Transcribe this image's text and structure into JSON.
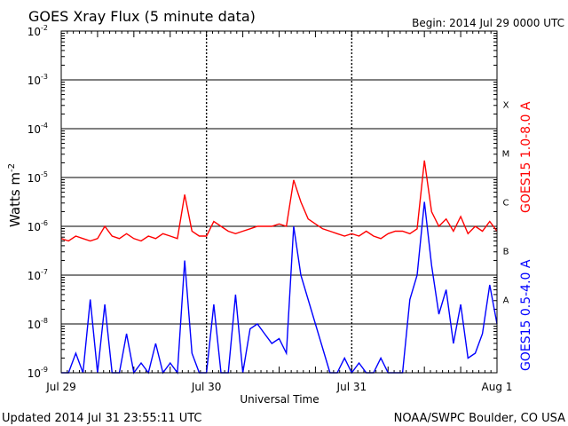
{
  "chart_data": {
    "type": "line",
    "title": "GOES Xray Flux (5 minute data)",
    "begin_label": "Begin:  2014 Jul 29 0000 UTC",
    "ylabel_base": "Watts m",
    "ylabel_exp": "-2",
    "xlabel": "Universal Time",
    "x_ticks": [
      "Jul 29",
      "Jul 30",
      "Jul 31",
      "Aug 1"
    ],
    "x_range_days": [
      0,
      3
    ],
    "y_scale": "log",
    "y_ticks": [
      {
        "base": "10",
        "exp": "-2"
      },
      {
        "base": "10",
        "exp": "-3"
      },
      {
        "base": "10",
        "exp": "-4"
      },
      {
        "base": "10",
        "exp": "-5"
      },
      {
        "base": "10",
        "exp": "-6"
      },
      {
        "base": "10",
        "exp": "-7"
      },
      {
        "base": "10",
        "exp": "-8"
      },
      {
        "base": "10",
        "exp": "-9"
      }
    ],
    "ylim_log10": [
      -9,
      -2
    ],
    "flare_classes": [
      {
        "label": "X",
        "log10": -3.5
      },
      {
        "label": "M",
        "log10": -4.5
      },
      {
        "label": "C",
        "log10": -5.5
      },
      {
        "label": "B",
        "log10": -6.5
      },
      {
        "label": "A",
        "log10": -7.5
      }
    ],
    "series": [
      {
        "name": "GOES15 1.0-8.0 A",
        "color": "#ff0000",
        "x_days": [
          0.0,
          0.05,
          0.1,
          0.15,
          0.2,
          0.25,
          0.3,
          0.35,
          0.4,
          0.45,
          0.5,
          0.55,
          0.6,
          0.65,
          0.7,
          0.75,
          0.8,
          0.85,
          0.9,
          0.95,
          1.0,
          1.05,
          1.1,
          1.15,
          1.2,
          1.25,
          1.3,
          1.35,
          1.4,
          1.45,
          1.5,
          1.55,
          1.6,
          1.65,
          1.7,
          1.75,
          1.8,
          1.85,
          1.9,
          1.95,
          2.0,
          2.05,
          2.1,
          2.15,
          2.2,
          2.25,
          2.3,
          2.35,
          2.4,
          2.45,
          2.5,
          2.55,
          2.6,
          2.65,
          2.7,
          2.75,
          2.8,
          2.85,
          2.9,
          2.95,
          3.0
        ],
        "log10_values": [
          -6.25,
          -6.3,
          -6.2,
          -6.25,
          -6.3,
          -6.25,
          -6.0,
          -6.2,
          -6.25,
          -6.15,
          -6.25,
          -6.3,
          -6.2,
          -6.25,
          -6.15,
          -6.2,
          -6.25,
          -5.35,
          -6.1,
          -6.2,
          -6.2,
          -5.9,
          -6.0,
          -6.1,
          -6.15,
          -6.1,
          -6.05,
          -6.0,
          -6.0,
          -6.0,
          -5.95,
          -6.0,
          -5.05,
          -5.5,
          -5.85,
          -5.95,
          -6.05,
          -6.1,
          -6.15,
          -6.2,
          -6.15,
          -6.2,
          -6.1,
          -6.2,
          -6.25,
          -6.15,
          -6.1,
          -6.1,
          -6.15,
          -6.05,
          -4.65,
          -5.7,
          -6.0,
          -5.85,
          -6.1,
          -5.8,
          -6.15,
          -6.0,
          -6.1,
          -5.9,
          -6.1
        ]
      },
      {
        "name": "GOES15 0.5-4.0 A",
        "color": "#0000ff",
        "x_days": [
          0.0,
          0.05,
          0.1,
          0.15,
          0.2,
          0.25,
          0.3,
          0.35,
          0.4,
          0.45,
          0.5,
          0.55,
          0.6,
          0.65,
          0.7,
          0.75,
          0.8,
          0.85,
          0.9,
          0.95,
          1.0,
          1.05,
          1.1,
          1.15,
          1.2,
          1.25,
          1.3,
          1.35,
          1.4,
          1.45,
          1.5,
          1.55,
          1.6,
          1.65,
          1.7,
          1.75,
          1.8,
          1.85,
          1.9,
          1.95,
          2.0,
          2.05,
          2.1,
          2.15,
          2.2,
          2.25,
          2.3,
          2.35,
          2.4,
          2.45,
          2.5,
          2.55,
          2.6,
          2.65,
          2.7,
          2.75,
          2.8,
          2.85,
          2.9,
          2.95,
          3.0
        ],
        "log10_values": [
          -9,
          -9,
          -8.6,
          -9,
          -7.5,
          -9,
          -7.6,
          -9,
          -9,
          -8.2,
          -9,
          -8.8,
          -9,
          -8.4,
          -9,
          -8.8,
          -9,
          -6.7,
          -8.6,
          -9,
          -9,
          -7.6,
          -9,
          -9,
          -7.4,
          -9,
          -8.1,
          -8.0,
          -8.2,
          -8.4,
          -8.3,
          -8.6,
          -6.0,
          -7.0,
          -7.5,
          -8.0,
          -8.5,
          -9,
          -9,
          -8.7,
          -9,
          -8.8,
          -9,
          -9,
          -8.7,
          -9,
          -9,
          -9,
          -7.5,
          -7.0,
          -5.5,
          -6.8,
          -7.8,
          -7.3,
          -8.4,
          -7.6,
          -8.7,
          -8.6,
          -8.2,
          -7.2,
          -8.0
        ]
      }
    ],
    "footer_left": "Updated 2014 Jul 31 23:55:11 UTC",
    "footer_right": "NOAA/SWPC Boulder, CO USA"
  }
}
